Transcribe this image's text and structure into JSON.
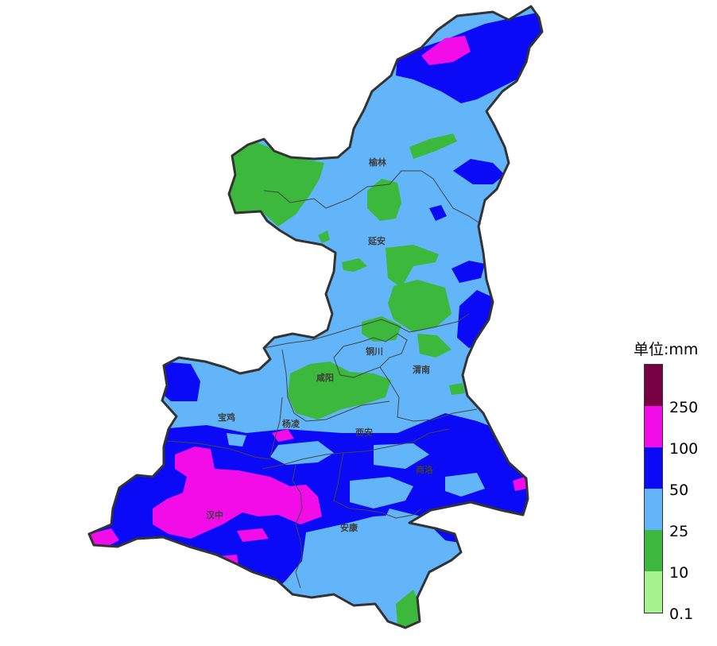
{
  "legend": {
    "title": "单位:mm",
    "bins": [
      {
        "label": "250",
        "color": "#7a0046"
      },
      {
        "label": "100",
        "color": "#f20de8"
      },
      {
        "label": "50",
        "color": "#0a0af7"
      },
      {
        "label": "25",
        "color": "#63b5fa"
      },
      {
        "label": "10",
        "color": "#3cb83c"
      },
      {
        "label": "0.1",
        "color": "#a6f28c"
      }
    ],
    "ticks": [
      "250",
      "100",
      "50",
      "25",
      "10",
      "0.1"
    ]
  },
  "cities": {
    "yulin": "榆林",
    "yanan": "延安",
    "tongchuan": "铜川",
    "weinan": "渭南",
    "xianyang": "咸阳",
    "baoji": "宝鸡",
    "yangling": "杨凌",
    "xian": "西安",
    "shangluo": "商洛",
    "hanzhong": "汉中",
    "ankang": "安康"
  }
}
